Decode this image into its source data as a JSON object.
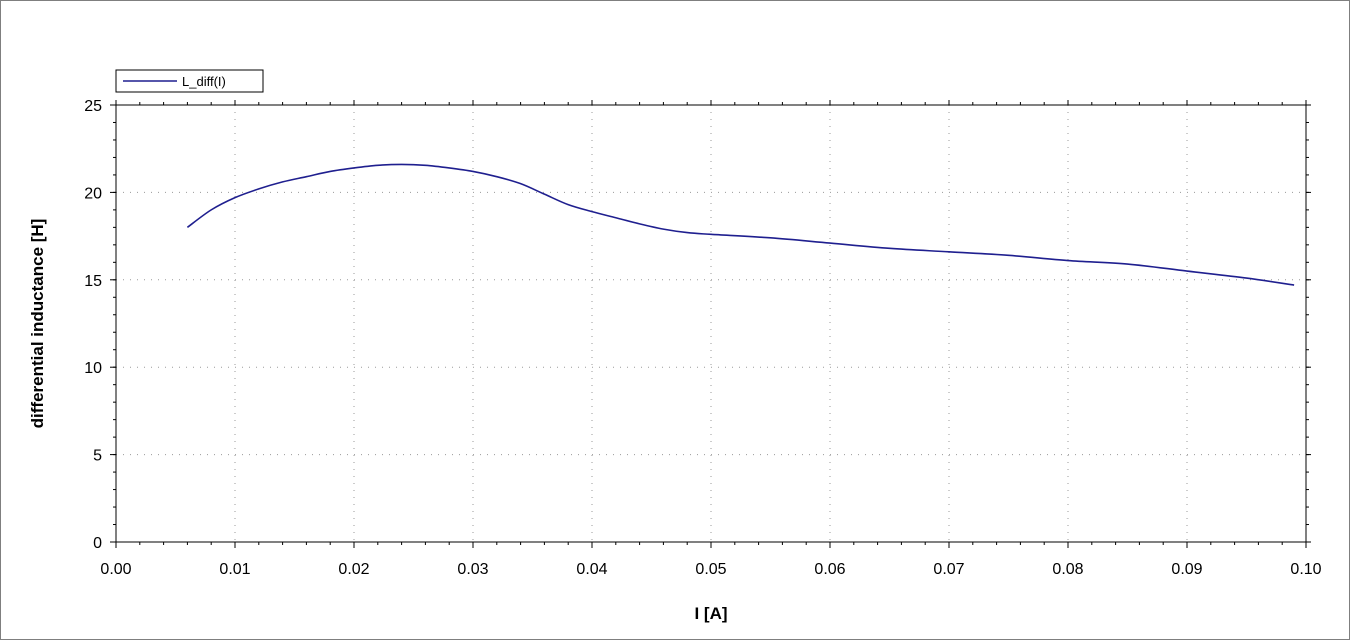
{
  "chart_data": {
    "type": "line",
    "title": "",
    "xlabel": "I [A]",
    "ylabel": "differential inductance [H]",
    "xlim": [
      0.0,
      0.1
    ],
    "ylim": [
      0,
      25
    ],
    "x_ticks": [
      0.0,
      0.01,
      0.02,
      0.03,
      0.04,
      0.05,
      0.06,
      0.07,
      0.08,
      0.09,
      0.1
    ],
    "x_tick_labels": [
      "0.00",
      "0.01",
      "0.02",
      "0.03",
      "0.04",
      "0.05",
      "0.06",
      "0.07",
      "0.08",
      "0.09",
      "0.10"
    ],
    "y_ticks": [
      0,
      5,
      10,
      15,
      20,
      25
    ],
    "y_tick_labels": [
      "0",
      "5",
      "10",
      "15",
      "20",
      "25"
    ],
    "grid": true,
    "legend_position": "top-left",
    "series": [
      {
        "name": "L_diff(I)",
        "color": "#1f1f8f",
        "x": [
          0.006,
          0.008,
          0.01,
          0.012,
          0.014,
          0.016,
          0.018,
          0.02,
          0.022,
          0.024,
          0.026,
          0.028,
          0.03,
          0.032,
          0.034,
          0.036,
          0.038,
          0.04,
          0.042,
          0.044,
          0.046,
          0.048,
          0.05,
          0.055,
          0.06,
          0.065,
          0.07,
          0.075,
          0.08,
          0.085,
          0.09,
          0.095,
          0.099
        ],
        "y": [
          18.0,
          19.0,
          19.7,
          20.2,
          20.6,
          20.9,
          21.2,
          21.4,
          21.55,
          21.6,
          21.55,
          21.4,
          21.2,
          20.9,
          20.5,
          19.9,
          19.3,
          18.9,
          18.55,
          18.2,
          17.9,
          17.7,
          17.6,
          17.4,
          17.1,
          16.8,
          16.6,
          16.4,
          16.1,
          15.9,
          15.5,
          15.1,
          14.7
        ]
      }
    ]
  }
}
